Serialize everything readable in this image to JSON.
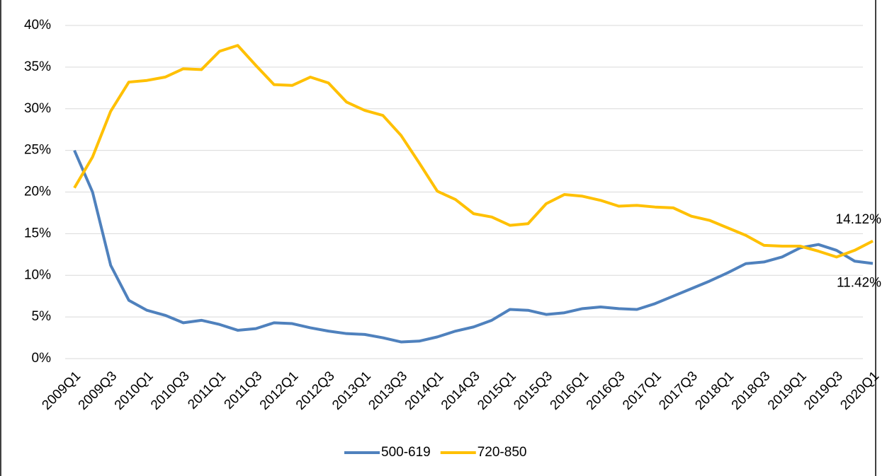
{
  "chart_data": {
    "type": "line",
    "categories": [
      "2009Q1",
      null,
      "2009Q3",
      null,
      "2010Q1",
      null,
      "2010Q3",
      null,
      "2011Q1",
      null,
      "2011Q3",
      null,
      "2012Q1",
      null,
      "2012Q3",
      null,
      "2013Q1",
      null,
      "2013Q3",
      null,
      "2014Q1",
      null,
      "2014Q3",
      null,
      "2015Q1",
      null,
      "2015Q3",
      null,
      "2016Q1",
      null,
      "2016Q3",
      null,
      "2017Q1",
      null,
      "2017Q3",
      null,
      "2018Q1",
      null,
      "2018Q3",
      null,
      "2019Q1",
      null,
      "2019Q3",
      null,
      "2020Q1"
    ],
    "series": [
      {
        "name": "500-619",
        "color": "#4f81bd",
        "values": [
          25,
          20,
          11.2,
          7.0,
          5.8,
          5.2,
          4.3,
          4.6,
          4.1,
          3.4,
          3.6,
          4.3,
          4.2,
          3.7,
          3.3,
          3.0,
          2.9,
          2.5,
          2.0,
          2.1,
          2.6,
          3.3,
          3.8,
          4.6,
          5.9,
          5.8,
          5.3,
          5.5,
          6.0,
          6.2,
          6.0,
          5.9,
          6.6,
          7.5,
          8.4,
          9.3,
          10.3,
          11.4,
          11.6,
          12.2,
          13.3,
          13.7,
          13.0,
          11.7,
          11.42
        ],
        "value_labels": [
          null,
          null,
          null,
          null,
          null,
          null,
          null,
          null,
          null,
          null,
          null,
          null,
          null,
          null,
          null,
          null,
          null,
          null,
          null,
          null,
          null,
          null,
          null,
          null,
          null,
          null,
          null,
          null,
          null,
          null,
          null,
          null,
          null,
          null,
          null,
          null,
          null,
          null,
          null,
          null,
          null,
          null,
          null,
          null,
          "11.42%"
        ]
      },
      {
        "name": "720-850",
        "color": "#ffc000",
        "values": [
          20.5,
          24.2,
          29.7,
          33.2,
          33.4,
          33.8,
          34.8,
          34.7,
          36.9,
          37.6,
          35.2,
          32.9,
          32.8,
          33.8,
          33.1,
          30.8,
          29.8,
          29.2,
          26.8,
          23.5,
          20.1,
          19.1,
          17.4,
          17.0,
          16.0,
          16.2,
          18.6,
          19.7,
          19.5,
          19.0,
          18.3,
          18.4,
          18.2,
          18.1,
          17.1,
          16.6,
          15.7,
          14.8,
          13.6,
          13.5,
          13.5,
          12.9,
          12.2,
          13.0,
          14.12
        ],
        "value_labels": [
          null,
          null,
          null,
          null,
          null,
          null,
          null,
          null,
          null,
          null,
          null,
          null,
          null,
          null,
          null,
          null,
          null,
          null,
          null,
          null,
          null,
          null,
          null,
          null,
          null,
          null,
          null,
          null,
          null,
          null,
          null,
          null,
          null,
          null,
          null,
          null,
          null,
          null,
          null,
          null,
          null,
          null,
          null,
          null,
          "14.12%"
        ]
      }
    ],
    "ylim": [
      0,
      40
    ],
    "yticks": [
      {
        "value": 0,
        "label": "0%"
      },
      {
        "value": 5,
        "label": "5%"
      },
      {
        "value": 10,
        "label": "10%"
      },
      {
        "value": 15,
        "label": "15%"
      },
      {
        "value": 20,
        "label": "20%"
      },
      {
        "value": 25,
        "label": "25%"
      },
      {
        "value": 30,
        "label": "30%"
      },
      {
        "value": 35,
        "label": "35%"
      },
      {
        "value": 40,
        "label": "40%"
      }
    ],
    "grid": true,
    "legend": "bottom"
  }
}
